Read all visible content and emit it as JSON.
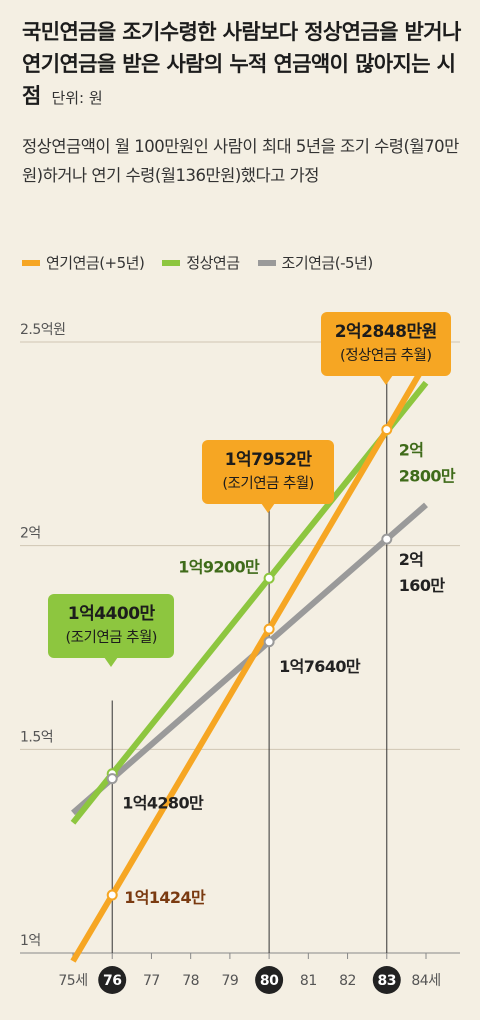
{
  "title": {
    "main": "국민연금을 조기수령한 사람보다 정상연금을 받거나 연기연금을 받은 사람의 누적 연금액이 많아지는 시점",
    "unit": "단위: 원"
  },
  "subtitle": "정상연금액이 월 100만원인 사람이 최대 5년을 조기 수령(월70만원)하거나 연기 수령(월136만원)했다고 가정",
  "colors": {
    "orange": "#f6a623",
    "green": "#8dc63f",
    "gray": "#9a9a9a",
    "orange_text": "#7a3a10",
    "green_text": "#3f6b1a"
  },
  "chart_data": {
    "type": "line",
    "x": [
      75,
      76,
      77,
      78,
      79,
      80,
      81,
      82,
      83,
      84
    ],
    "x_tick_labels": [
      "75세",
      "76",
      "77",
      "78",
      "79",
      "80",
      "81",
      "82",
      "83",
      "84세"
    ],
    "highlighted_x": [
      76,
      80,
      83
    ],
    "y_ticks": [
      1,
      1.5,
      2,
      2.5
    ],
    "y_tick_labels": [
      "1억",
      "1.5억",
      "2억",
      "2.5억원"
    ],
    "ylim": [
      1,
      2.5
    ],
    "xlim": [
      75,
      84
    ],
    "grid": true,
    "legend_position": "top",
    "series": [
      {
        "name": "연기연금(+5년)",
        "color": "orange",
        "points": [
          [
            75,
            0.98
          ],
          [
            76,
            1.1424
          ],
          [
            80,
            1.7952
          ],
          [
            83,
            2.2848
          ],
          [
            84,
            2.45
          ]
        ]
      },
      {
        "name": "정상연금",
        "color": "green",
        "points": [
          [
            75,
            1.32
          ],
          [
            76,
            1.44
          ],
          [
            80,
            1.92
          ],
          [
            83,
            2.28
          ],
          [
            84,
            2.4
          ]
        ]
      },
      {
        "name": "조기연금(-5년)",
        "color": "gray",
        "points": [
          [
            75,
            1.344
          ],
          [
            76,
            1.428
          ],
          [
            80,
            1.764
          ],
          [
            83,
            2.016
          ],
          [
            84,
            2.1
          ]
        ]
      }
    ],
    "markers": [
      {
        "x": 76,
        "y": 1.1424,
        "series": "orange"
      },
      {
        "x": 76,
        "y": 1.44,
        "series": "green"
      },
      {
        "x": 76,
        "y": 1.428,
        "series": "gray"
      },
      {
        "x": 80,
        "y": 1.7952,
        "series": "orange"
      },
      {
        "x": 80,
        "y": 1.92,
        "series": "green"
      },
      {
        "x": 80,
        "y": 1.764,
        "series": "gray"
      },
      {
        "x": 83,
        "y": 2.2848,
        "series": "orange"
      },
      {
        "x": 83,
        "y": 2.016,
        "series": "gray"
      }
    ],
    "value_labels": [
      {
        "text": "1억1424만",
        "x": 76,
        "y": 1.1424,
        "color": "orange_text",
        "anchor": "right"
      },
      {
        "text": "1억4280만",
        "x": 76,
        "y": 1.428,
        "color": "dark",
        "anchor": "right-below"
      },
      {
        "text": "1억9200만",
        "x": 80,
        "y": 1.92,
        "color": "green_text",
        "anchor": "left"
      },
      {
        "text": "1억7640만",
        "x": 80,
        "y": 1.764,
        "color": "dark",
        "anchor": "right-below"
      },
      {
        "text": "2억",
        "x": 83,
        "y": 2.2848,
        "color": "green_text",
        "anchor": "right-line1"
      },
      {
        "text": "2800만",
        "x": 83,
        "y": 2.2848,
        "color": "green_text",
        "anchor": "right-line2"
      },
      {
        "text": "2억",
        "x": 83,
        "y": 2.016,
        "color": "dark",
        "anchor": "right-line1"
      },
      {
        "text": "160만",
        "x": 83,
        "y": 2.016,
        "color": "dark",
        "anchor": "right-line2"
      }
    ],
    "callouts": [
      {
        "value": "1억4400만",
        "note": "(조기연금 추월)",
        "x": 76,
        "bg": "green"
      },
      {
        "value": "1억7952만",
        "note": "(조기연금 추월)",
        "x": 80,
        "bg": "orange"
      },
      {
        "value": "2억2848만원",
        "note": "(정상연금 추월)",
        "x": 83,
        "bg": "orange"
      }
    ]
  }
}
